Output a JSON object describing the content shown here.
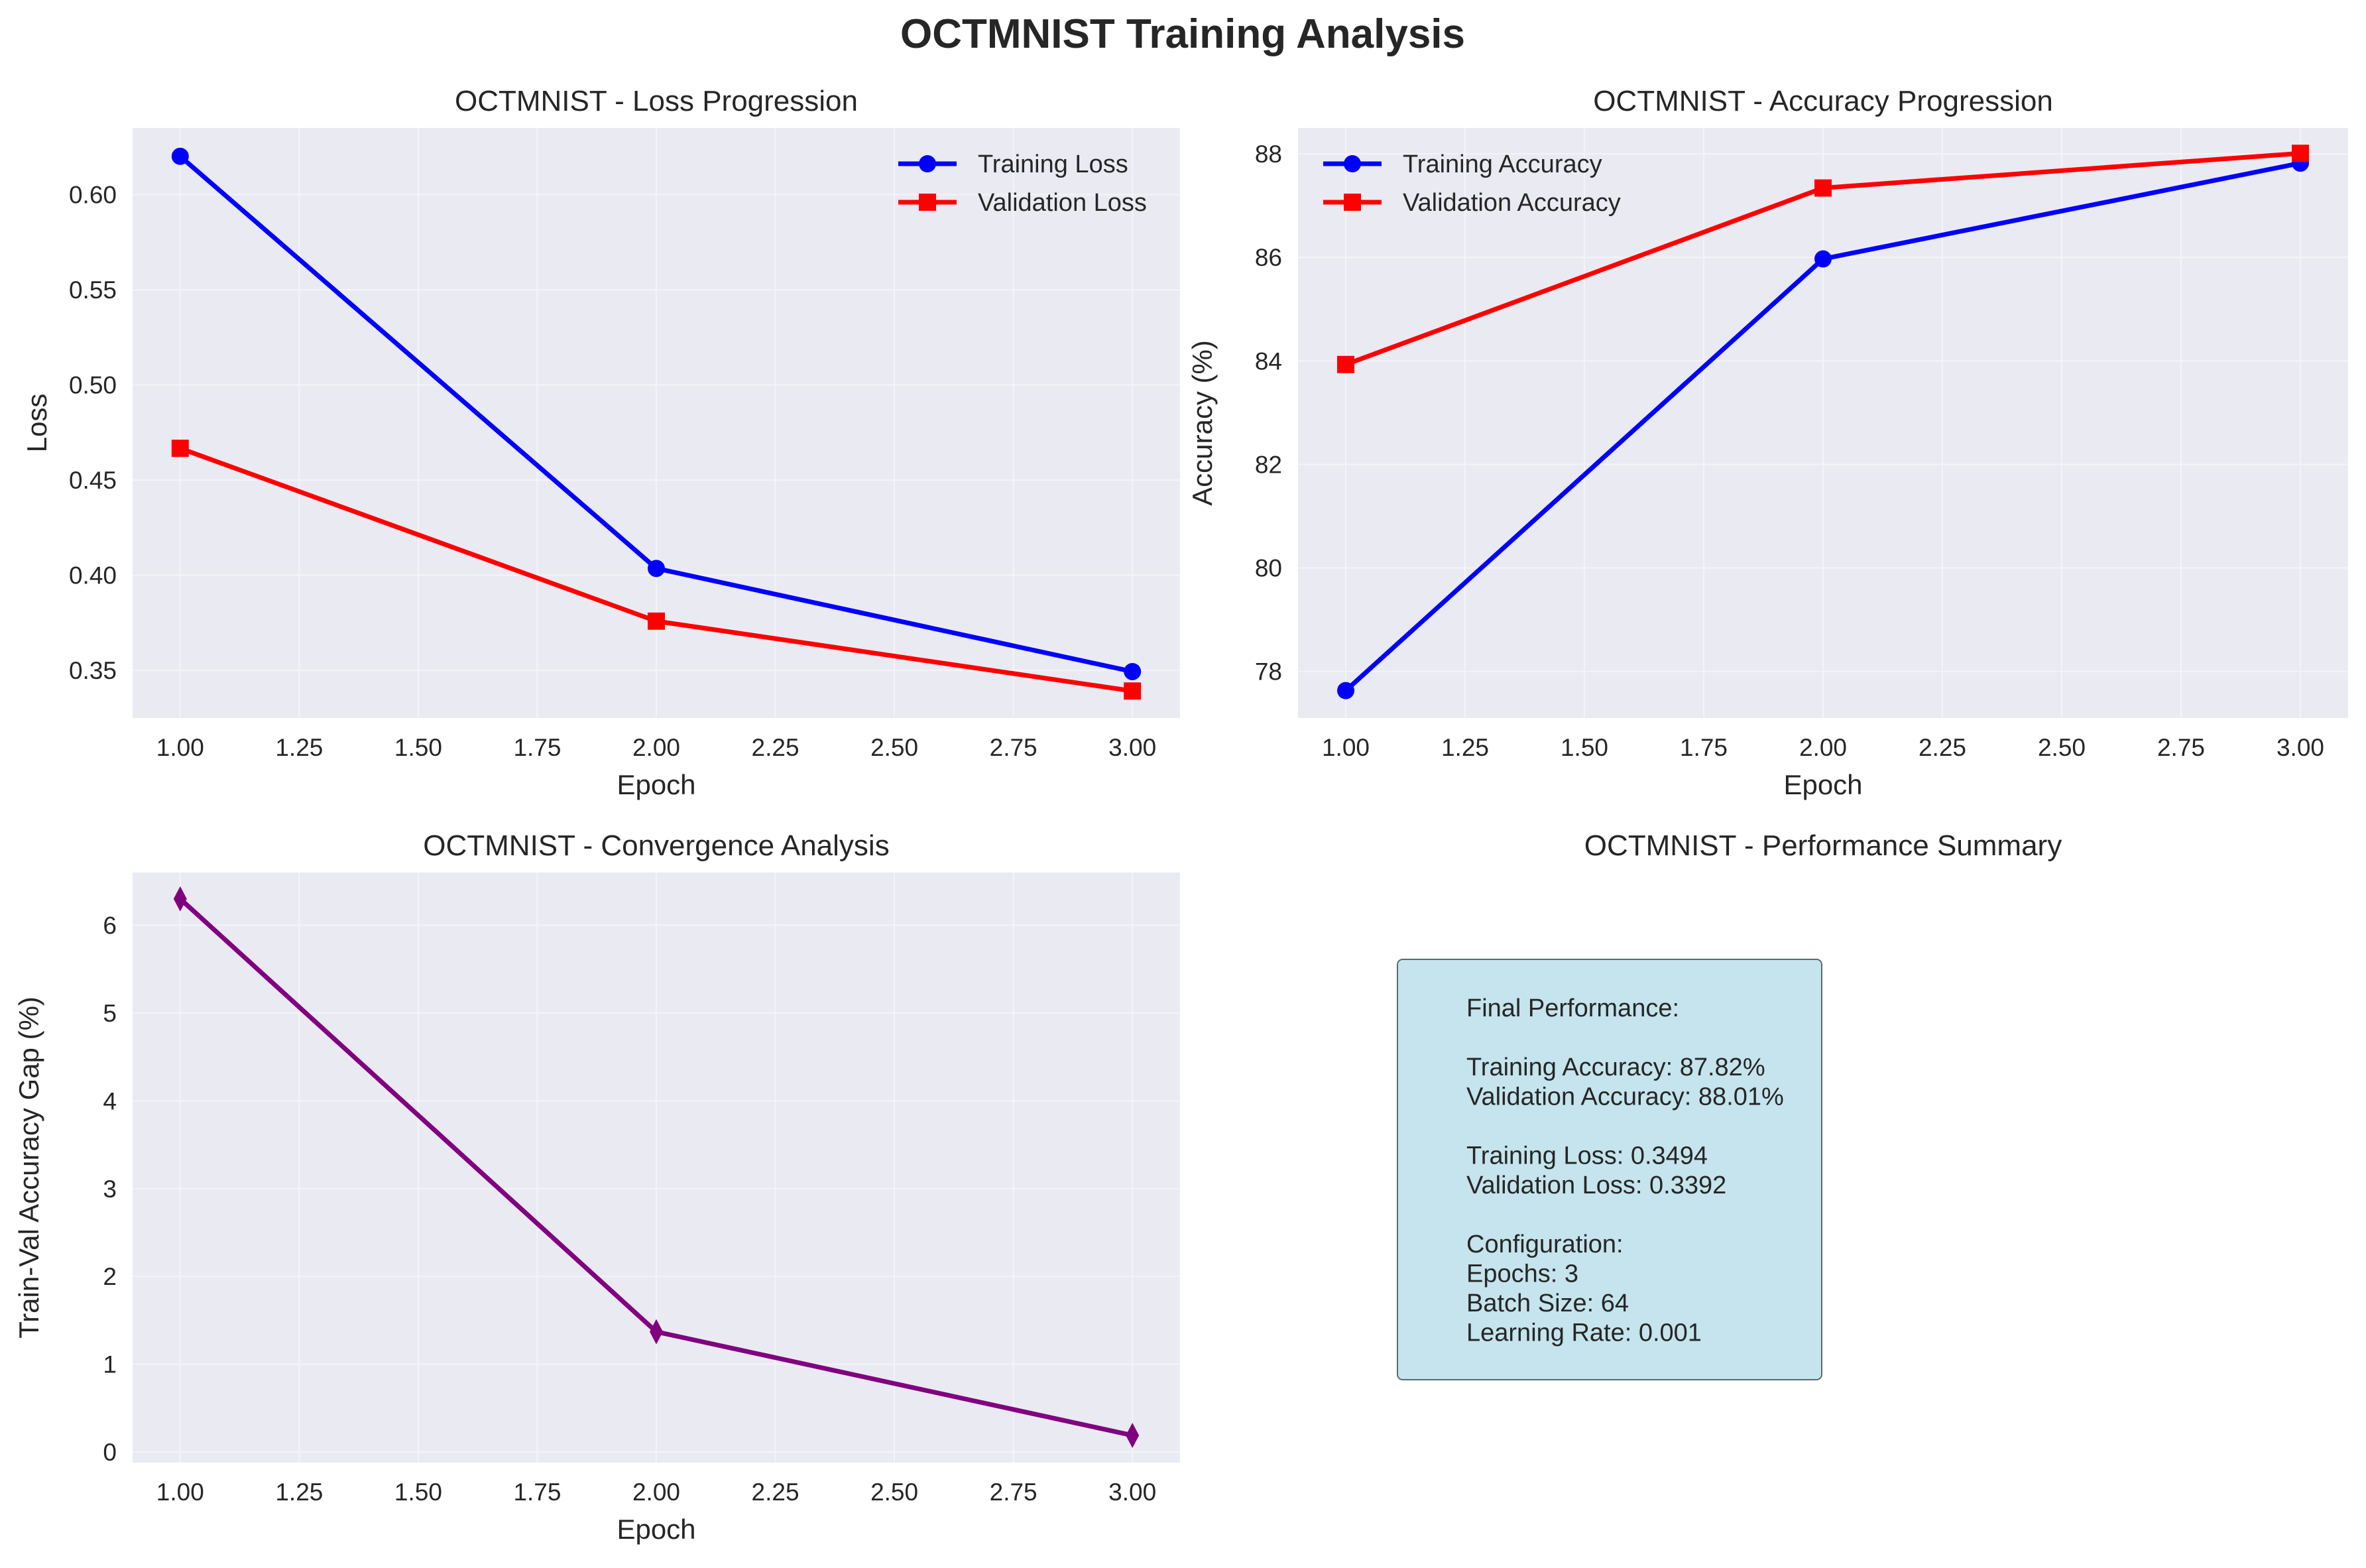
{
  "figure_title": "OCTMNIST Training Analysis",
  "colors": {
    "train": "#0000ff",
    "val": "#ff0000",
    "gap": "#800080",
    "axes_bg": "#eaeaf2",
    "grid": "#f4f4f8",
    "summary_bg": "#add8e6"
  },
  "summary": {
    "title": "OCTMNIST - Performance Summary",
    "lines": [
      "Final Performance:",
      "",
      "Training Accuracy: 87.82%",
      "Validation Accuracy: 88.01%",
      "",
      "Training Loss: 0.3494",
      "Validation Loss: 0.3392",
      "",
      "Configuration:",
      "Epochs: 3",
      "Batch Size: 64",
      "Learning Rate: 0.001"
    ]
  },
  "chart_data": [
    {
      "id": "loss",
      "type": "line",
      "title": "OCTMNIST - Loss Progression",
      "xlabel": "Epoch",
      "ylabel": "Loss",
      "x": [
        1,
        2,
        3
      ],
      "xlim": [
        0.9,
        3.1
      ],
      "ylim": [
        0.325,
        0.635
      ],
      "xticks": [
        1.0,
        1.25,
        1.5,
        1.75,
        2.0,
        2.25,
        2.5,
        2.75,
        3.0
      ],
      "xtick_labels": [
        "1.00",
        "1.25",
        "1.50",
        "1.75",
        "2.00",
        "2.25",
        "2.50",
        "2.75",
        "3.00"
      ],
      "yticks": [
        0.35,
        0.4,
        0.45,
        0.5,
        0.55,
        0.6
      ],
      "ytick_labels": [
        "0.35",
        "0.40",
        "0.45",
        "0.50",
        "0.55",
        "0.60"
      ],
      "grid": true,
      "legend": "upper right",
      "series": [
        {
          "name": "Training Loss",
          "color": "#0000ff",
          "marker": "circle",
          "values": [
            0.6201,
            0.4036,
            0.3494
          ]
        },
        {
          "name": "Validation Loss",
          "color": "#ff0000",
          "marker": "square",
          "values": [
            0.4667,
            0.3759,
            0.3392
          ]
        }
      ]
    },
    {
      "id": "acc",
      "type": "line",
      "title": "OCTMNIST - Accuracy Progression",
      "xlabel": "Epoch",
      "ylabel": "Accuracy (%)",
      "x": [
        1,
        2,
        3
      ],
      "xlim": [
        0.9,
        3.1
      ],
      "ylim": [
        77.1,
        88.5
      ],
      "xticks": [
        1.0,
        1.25,
        1.5,
        1.75,
        2.0,
        2.25,
        2.5,
        2.75,
        3.0
      ],
      "xtick_labels": [
        "1.00",
        "1.25",
        "1.50",
        "1.75",
        "2.00",
        "2.25",
        "2.50",
        "2.75",
        "3.00"
      ],
      "yticks": [
        78,
        80,
        82,
        84,
        86,
        88
      ],
      "ytick_labels": [
        "78",
        "80",
        "82",
        "84",
        "86",
        "88"
      ],
      "grid": true,
      "legend": "upper left",
      "series": [
        {
          "name": "Training Accuracy",
          "color": "#0000ff",
          "marker": "circle",
          "values": [
            77.63,
            85.97,
            87.82
          ]
        },
        {
          "name": "Validation Accuracy",
          "color": "#ff0000",
          "marker": "square",
          "values": [
            83.93,
            87.34,
            88.01
          ]
        }
      ]
    },
    {
      "id": "gap",
      "type": "line",
      "title": "OCTMNIST - Convergence Analysis",
      "xlabel": "Epoch",
      "ylabel": "Train-Val Accuracy Gap (%)",
      "x": [
        1,
        2,
        3
      ],
      "xlim": [
        0.9,
        3.1
      ],
      "ylim": [
        -0.12,
        6.6
      ],
      "xticks": [
        1.0,
        1.25,
        1.5,
        1.75,
        2.0,
        2.25,
        2.5,
        2.75,
        3.0
      ],
      "xtick_labels": [
        "1.00",
        "1.25",
        "1.50",
        "1.75",
        "2.00",
        "2.25",
        "2.50",
        "2.75",
        "3.00"
      ],
      "yticks": [
        0,
        1,
        2,
        3,
        4,
        5,
        6
      ],
      "ytick_labels": [
        "0",
        "1",
        "2",
        "3",
        "4",
        "5",
        "6"
      ],
      "grid": true,
      "legend": "none",
      "series": [
        {
          "color": "#800080",
          "marker": "diamond",
          "values": [
            6.3,
            1.37,
            0.19
          ]
        }
      ]
    }
  ]
}
